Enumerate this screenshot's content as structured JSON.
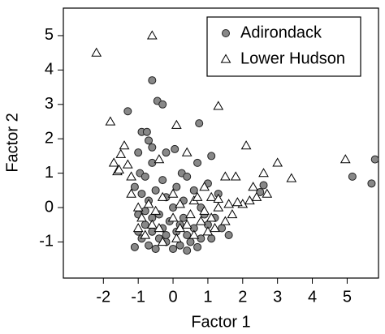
{
  "chart_data": {
    "type": "scatter",
    "x_label": "Factor 1",
    "y_label": "Factor 2",
    "xlim": [
      -3.15,
      5.9
    ],
    "ylim": [
      -2.05,
      5.8
    ],
    "xticks": [
      -2,
      -1,
      0,
      1,
      2,
      3,
      4,
      5
    ],
    "yticks": [
      -1,
      0,
      1,
      2,
      3,
      4,
      5
    ],
    "grid": false,
    "legend": "top-right",
    "series": [
      {
        "name": "Adirondack",
        "color": "#888888",
        "marker": "circle",
        "x": [
          5.8,
          5.15,
          5.7,
          -0.6,
          -0.45,
          -0.3,
          -1.3,
          0.75,
          -0.9,
          -0.75,
          -0.7,
          -0.6,
          -1.0,
          -0.2,
          0.05,
          0.25,
          0.7,
          1.1,
          2.6,
          2.5,
          1.6,
          -0.95,
          -0.8,
          -0.6,
          -0.3,
          0.1,
          0.4,
          -1.1,
          -0.9,
          -0.7,
          -0.5,
          -0.2,
          0.3,
          0.6,
          1.0,
          1.3,
          -1.0,
          -0.8,
          -0.6,
          -0.4,
          -0.2,
          0.0,
          0.2,
          0.4,
          0.6,
          0.8,
          1.0,
          1.2,
          -0.9,
          -0.7,
          -0.5,
          -0.3,
          -0.1,
          0.1,
          0.3,
          0.5,
          0.7,
          0.9,
          -1.1,
          -0.6,
          -0.2,
          0.2,
          0.4,
          -0.8,
          1.1,
          0.0,
          -0.4,
          1.4,
          0.8,
          -1.0
        ],
        "y": [
          1.4,
          0.9,
          0.7,
          3.7,
          3.1,
          3.0,
          2.8,
          2.45,
          2.2,
          2.2,
          1.95,
          1.75,
          1.6,
          1.6,
          1.7,
          1.0,
          1.3,
          1.5,
          0.65,
          0.45,
          -0.8,
          1.0,
          0.9,
          1.3,
          0.8,
          0.6,
          0.9,
          0.6,
          0.4,
          0.2,
          0.5,
          0.3,
          0.2,
          0.5,
          0.7,
          0.4,
          -0.2,
          -0.5,
          -0.7,
          -0.9,
          -1.0,
          -1.2,
          -1.1,
          -0.8,
          -0.6,
          -0.9,
          -0.5,
          -0.3,
          -0.9,
          -1.1,
          -1.2,
          -0.6,
          -0.4,
          -0.7,
          -0.3,
          -1.0,
          -1.15,
          -0.2,
          -1.15,
          -0.3,
          -0.8,
          -0.5,
          -1.25,
          -0.1,
          -0.9,
          0.0,
          -0.2,
          -0.6,
          0.0,
          -0.7
        ]
      },
      {
        "name": "Lower Hudson",
        "color": "#ffffff",
        "marker": "triangle",
        "x": [
          -2.2,
          -0.6,
          1.3,
          -1.8,
          0.1,
          2.1,
          -1.4,
          -1.5,
          -1.7,
          -1.6,
          -1.3,
          -1.55,
          3.0,
          3.4,
          4.95,
          2.6,
          1.5,
          1.8,
          2.3,
          0.9,
          2.0,
          1.85,
          2.2,
          1.7,
          1.1,
          1.3,
          0.6,
          -1.2,
          -0.4,
          0.4,
          -1.2,
          -1.0,
          -0.9,
          -0.7,
          -0.5,
          -0.3,
          0.0,
          0.2,
          0.5,
          0.7,
          0.9,
          1.1,
          1.3,
          1.5,
          -1.0,
          -0.8,
          -0.6,
          -0.4,
          0.0,
          0.2,
          0.4,
          0.6,
          0.8,
          1.0,
          1.2,
          -0.3,
          0.1,
          2.4,
          2.7,
          1.6
        ],
        "y": [
          4.5,
          5.0,
          2.95,
          2.5,
          2.4,
          1.8,
          1.8,
          1.55,
          1.3,
          1.05,
          1.25,
          1.1,
          1.3,
          0.85,
          1.4,
          1.0,
          0.9,
          0.9,
          0.6,
          0.6,
          0.1,
          0.15,
          0.2,
          -0.2,
          0.3,
          0.25,
          0.2,
          0.9,
          1.4,
          1.6,
          0.4,
          0.0,
          -0.3,
          0.1,
          -0.1,
          0.3,
          0.4,
          0.1,
          -0.2,
          0.3,
          -0.1,
          -0.3,
          0.0,
          -0.4,
          -0.6,
          -0.8,
          -0.5,
          -0.6,
          -0.3,
          -0.6,
          -0.5,
          -0.8,
          -0.4,
          -0.7,
          -0.6,
          -1.0,
          -0.9,
          0.3,
          0.4,
          0.1
        ]
      }
    ]
  }
}
